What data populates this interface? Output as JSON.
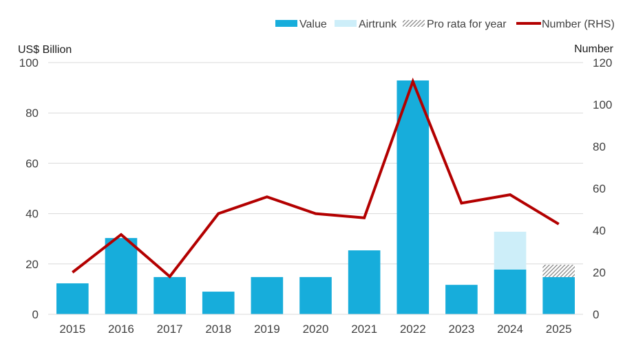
{
  "chart_data": {
    "type": "bar",
    "title": "",
    "categories": [
      "2015",
      "2016",
      "2017",
      "2018",
      "2019",
      "2020",
      "2021",
      "2022",
      "2023",
      "2024",
      "2025"
    ],
    "series": [
      {
        "name": "Value",
        "kind": "bar",
        "stack": "main",
        "axis": "left",
        "color": "#17ADDB",
        "values": [
          12.3,
          30.3,
          14.8,
          9.0,
          14.8,
          14.8,
          25.4,
          92.9,
          11.7,
          17.8,
          14.8
        ]
      },
      {
        "name": "Airtrunk",
        "kind": "bar",
        "stack": "main",
        "axis": "left",
        "color": "#CDEEF9",
        "values": [
          0,
          0,
          0,
          0,
          0,
          0,
          0,
          0,
          0,
          15.0,
          0
        ]
      },
      {
        "name": "Pro rata for year",
        "kind": "bar",
        "stack": "main",
        "axis": "left",
        "pattern": "diagonal-hatch",
        "color": "#7F7F7F",
        "values": [
          0,
          0,
          0,
          0,
          0,
          0,
          0,
          0,
          0,
          0,
          4.9
        ]
      },
      {
        "name": "Number (RHS)",
        "kind": "line",
        "axis": "right",
        "color": "#B30000",
        "values": [
          20,
          38,
          18,
          48,
          56,
          48,
          46,
          111,
          53,
          57,
          43
        ]
      }
    ],
    "y_left": {
      "label": "US$ Billion",
      "range": [
        0,
        100
      ],
      "ticks": [
        "0",
        "20",
        "40",
        "60",
        "80",
        "100"
      ]
    },
    "y_right": {
      "label": "Number",
      "range": [
        0,
        120
      ],
      "ticks": [
        "0",
        "20",
        "40",
        "60",
        "80",
        "100",
        "120"
      ]
    },
    "xlabel": "",
    "grid": true,
    "legend": {
      "position": "top-right",
      "items": [
        {
          "label": "Value",
          "symbol": "bar",
          "color": "#17ADDB"
        },
        {
          "label": "Airtrunk",
          "symbol": "bar",
          "color": "#CDEEF9"
        },
        {
          "label": "Pro rata for year",
          "symbol": "hatch",
          "color": "#7F7F7F"
        },
        {
          "label": "Number (RHS)",
          "symbol": "line",
          "color": "#B30000"
        }
      ]
    }
  }
}
